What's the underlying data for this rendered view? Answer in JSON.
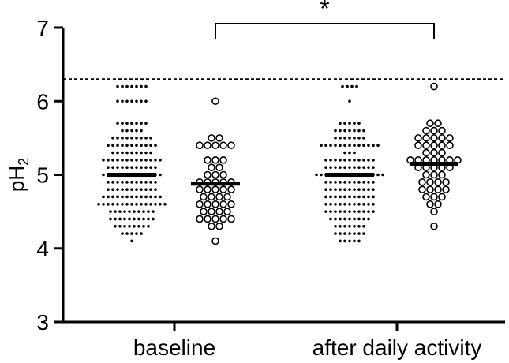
{
  "chart_data": {
    "type": "scatter",
    "title": "",
    "xlabel": "",
    "ylabel": {
      "main": "pH",
      "sub": "2"
    },
    "ylim": [
      3,
      7
    ],
    "y_ticks": [
      "3",
      "4",
      "5",
      "6",
      "7"
    ],
    "categories": [
      "baseline",
      "after daily activity"
    ],
    "reference_line": {
      "value": 6.3,
      "style": "dashed"
    },
    "significance": {
      "between": [
        "baseline",
        "after daily activity"
      ],
      "label": "*"
    },
    "series": [
      {
        "group": "baseline",
        "marker": "filled-dot",
        "median": 5.0,
        "values": [
          6.2,
          6.2,
          6.2,
          6.2,
          6.2,
          6.2,
          6.2,
          6.0,
          6.0,
          6.0,
          6.0,
          6.0,
          6.0,
          6.0,
          5.7,
          5.7,
          5.7,
          5.7,
          5.7,
          5.7,
          5.7,
          5.6,
          5.6,
          5.6,
          5.6,
          5.6,
          5.5,
          5.5,
          5.5,
          5.5,
          5.5,
          5.5,
          5.5,
          5.5,
          5.5,
          5.4,
          5.4,
          5.4,
          5.4,
          5.4,
          5.4,
          5.4,
          5.4,
          5.4,
          5.4,
          5.4,
          5.3,
          5.3,
          5.3,
          5.3,
          5.3,
          5.3,
          5.3,
          5.3,
          5.3,
          5.2,
          5.2,
          5.2,
          5.2,
          5.2,
          5.2,
          5.2,
          5.2,
          5.2,
          5.2,
          5.2,
          5.2,
          5.2,
          5.1,
          5.1,
          5.1,
          5.1,
          5.1,
          5.1,
          5.1,
          5.1,
          5.1,
          5.1,
          5.1,
          5.0,
          5.0,
          5.0,
          5.0,
          5.0,
          5.0,
          5.0,
          5.0,
          5.0,
          5.0,
          5.0,
          5.0,
          5.0,
          4.9,
          4.9,
          4.9,
          4.9,
          4.9,
          4.9,
          4.9,
          4.9,
          4.9,
          4.9,
          4.9,
          4.8,
          4.8,
          4.8,
          4.8,
          4.8,
          4.8,
          4.8,
          4.8,
          4.8,
          4.8,
          4.8,
          4.7,
          4.7,
          4.7,
          4.7,
          4.7,
          4.7,
          4.7,
          4.7,
          4.7,
          4.7,
          4.7,
          4.7,
          4.7,
          4.6,
          4.6,
          4.6,
          4.6,
          4.6,
          4.6,
          4.6,
          4.6,
          4.6,
          4.6,
          4.6,
          4.6,
          4.6,
          4.6,
          4.6,
          4.5,
          4.5,
          4.5,
          4.5,
          4.5,
          4.5,
          4.5,
          4.5,
          4.5,
          4.5,
          4.4,
          4.4,
          4.4,
          4.4,
          4.4,
          4.4,
          4.4,
          4.4,
          4.4,
          4.4,
          4.3,
          4.3,
          4.3,
          4.3,
          4.3,
          4.3,
          4.3,
          4.3,
          4.2,
          4.2,
          4.2,
          4.2,
          4.2,
          4.1
        ]
      },
      {
        "group": "baseline",
        "marker": "open-circle",
        "median": 4.88,
        "values": [
          6.0,
          5.5,
          5.5,
          5.4,
          5.4,
          5.4,
          5.4,
          5.4,
          5.2,
          5.2,
          5.2,
          5.1,
          5.1,
          5.0,
          5.0,
          5.0,
          4.9,
          4.9,
          4.9,
          4.9,
          4.9,
          4.8,
          4.8,
          4.8,
          4.8,
          4.8,
          4.7,
          4.7,
          4.7,
          4.7,
          4.6,
          4.6,
          4.6,
          4.6,
          4.6,
          4.5,
          4.5,
          4.5,
          4.5,
          4.4,
          4.4,
          4.4,
          4.4,
          4.4,
          4.3,
          4.3,
          4.1
        ]
      },
      {
        "group": "after daily activity",
        "marker": "filled-dot",
        "median": 5.0,
        "values": [
          6.2,
          6.2,
          6.2,
          6.2,
          6.0,
          5.7,
          5.7,
          5.7,
          5.7,
          5.7,
          5.6,
          5.6,
          5.6,
          5.6,
          5.6,
          5.6,
          5.6,
          5.5,
          5.5,
          5.5,
          5.5,
          5.5,
          5.5,
          5.5,
          5.4,
          5.4,
          5.4,
          5.4,
          5.4,
          5.4,
          5.4,
          5.4,
          5.4,
          5.4,
          5.4,
          5.4,
          5.4,
          5.3,
          5.3,
          5.3,
          5.2,
          5.2,
          5.2,
          5.2,
          5.2,
          5.2,
          5.2,
          5.2,
          5.2,
          5.2,
          5.2,
          5.1,
          5.1,
          5.1,
          5.1,
          5.1,
          5.1,
          5.1,
          5.1,
          5.1,
          5.1,
          5.1,
          5.0,
          5.0,
          5.0,
          5.0,
          5.0,
          5.0,
          5.0,
          5.0,
          5.0,
          5.0,
          5.0,
          5.0,
          5.0,
          5.0,
          5.0,
          4.9,
          4.9,
          4.9,
          4.9,
          4.9,
          4.9,
          4.9,
          4.9,
          4.9,
          4.9,
          4.9,
          4.8,
          4.8,
          4.8,
          4.8,
          4.8,
          4.8,
          4.8,
          4.8,
          4.8,
          4.8,
          4.8,
          4.7,
          4.7,
          4.7,
          4.7,
          4.7,
          4.7,
          4.7,
          4.7,
          4.7,
          4.7,
          4.7,
          4.6,
          4.6,
          4.6,
          4.6,
          4.6,
          4.6,
          4.6,
          4.6,
          4.6,
          4.6,
          4.6,
          4.5,
          4.5,
          4.5,
          4.5,
          4.5,
          4.5,
          4.5,
          4.5,
          4.5,
          4.5,
          4.5,
          4.4,
          4.4,
          4.4,
          4.4,
          4.4,
          4.4,
          4.4,
          4.4,
          4.4,
          4.3,
          4.3,
          4.3,
          4.3,
          4.3,
          4.3,
          4.3,
          4.2,
          4.2,
          4.2,
          4.2,
          4.2,
          4.2,
          4.2,
          4.1,
          4.1,
          4.1,
          4.1,
          4.1
        ]
      },
      {
        "group": "after daily activity",
        "marker": "open-circle",
        "median": 5.15,
        "values": [
          6.2,
          5.7,
          5.7,
          5.6,
          5.6,
          5.6,
          5.5,
          5.5,
          5.5,
          5.5,
          5.5,
          5.4,
          5.4,
          5.4,
          5.4,
          5.4,
          5.3,
          5.3,
          5.3,
          5.2,
          5.2,
          5.2,
          5.2,
          5.2,
          5.2,
          5.2,
          5.1,
          5.1,
          5.1,
          5.1,
          5.1,
          5.0,
          5.0,
          5.0,
          4.9,
          4.9,
          4.9,
          4.9,
          4.8,
          4.8,
          4.8,
          4.8,
          4.7,
          4.7,
          4.7,
          4.6,
          4.6,
          4.5,
          4.3
        ]
      }
    ]
  }
}
